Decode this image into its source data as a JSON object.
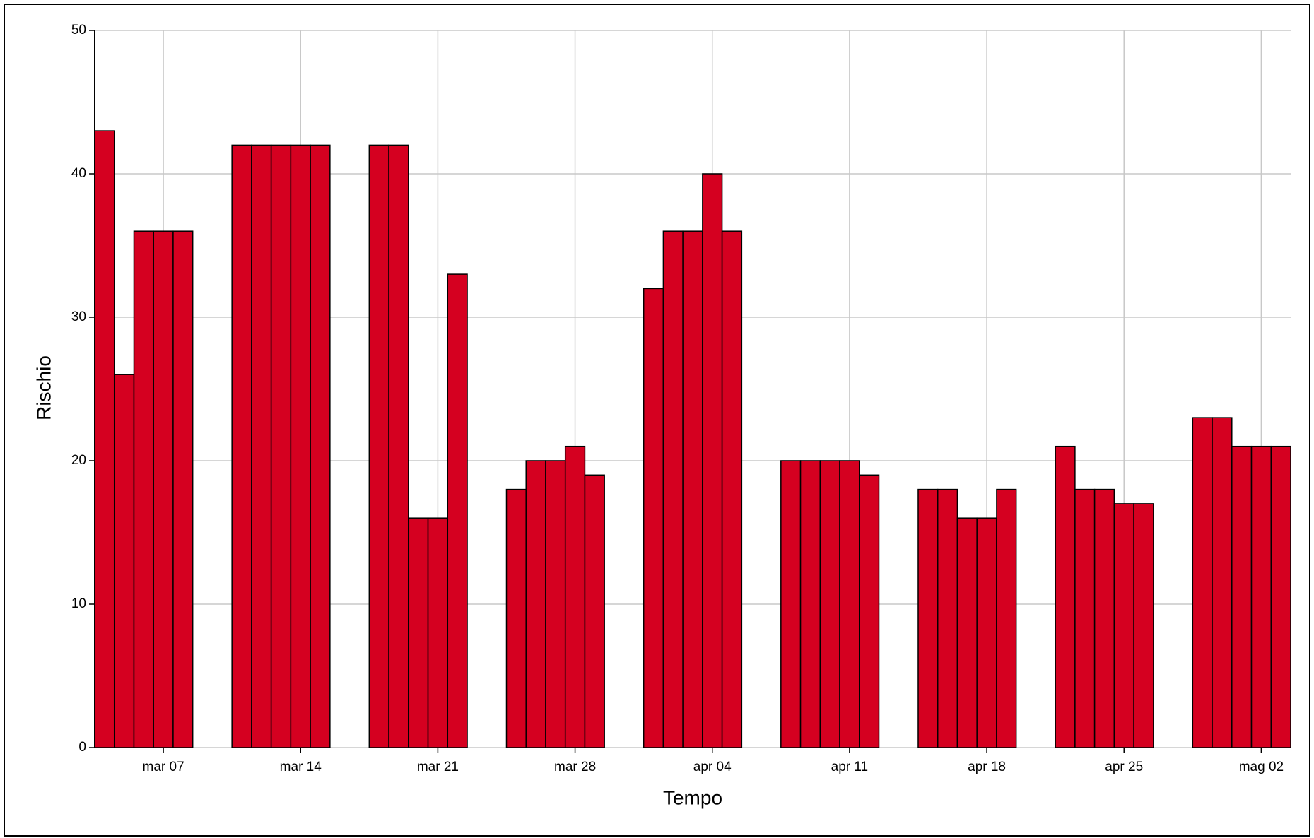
{
  "chart_data": {
    "type": "bar",
    "xlabel": "Tempo",
    "ylabel": "Rischio",
    "categories": [
      null,
      null,
      null,
      "mar 07",
      null,
      null,
      null,
      null,
      null,
      null,
      "mar 14",
      null,
      null,
      null,
      null,
      null,
      null,
      "mar 21",
      null,
      null,
      null,
      null,
      null,
      null,
      "mar 28",
      null,
      null,
      null,
      null,
      null,
      null,
      "apr 04",
      null,
      null,
      null,
      null,
      null,
      null,
      "apr 11",
      null,
      null,
      null,
      null,
      null,
      null,
      "apr 18",
      null,
      null,
      null,
      null,
      null,
      null,
      "apr 25",
      null,
      null,
      null,
      null,
      null,
      null,
      "mag 02",
      null
    ],
    "values": [
      43,
      26,
      36,
      36,
      36,
      0,
      0,
      42,
      42,
      42,
      42,
      42,
      0,
      0,
      42,
      42,
      16,
      16,
      33,
      0,
      0,
      18,
      20,
      20,
      21,
      19,
      0,
      0,
      32,
      36,
      36,
      40,
      36,
      0,
      0,
      20,
      20,
      20,
      20,
      19,
      0,
      0,
      18,
      18,
      16,
      16,
      18,
      0,
      0,
      21,
      18,
      18,
      17,
      17,
      0,
      0,
      23,
      23,
      21,
      21,
      21
    ],
    "color": "#d50020",
    "ylim": [
      0,
      50
    ],
    "yticks": [
      0,
      10,
      20,
      30,
      40,
      50
    ],
    "grid": true
  }
}
